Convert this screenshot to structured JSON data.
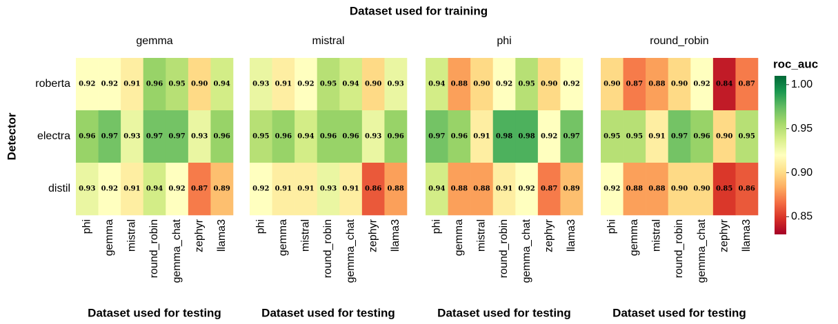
{
  "chart_data": {
    "type": "heatmap",
    "title": "Dataset used for training",
    "x_label": "Dataset used for testing",
    "y_label": "Detector",
    "x_categories": [
      "phi",
      "gemma",
      "mistral",
      "round_robin",
      "gemma_chat",
      "zephyr",
      "llama3"
    ],
    "y_categories": [
      "roberta",
      "electra",
      "distil"
    ],
    "facets": [
      {
        "name": "gemma",
        "values": [
          [
            0.92,
            0.92,
            0.91,
            0.96,
            0.95,
            0.9,
            0.94
          ],
          [
            0.96,
            0.97,
            0.93,
            0.97,
            0.97,
            0.93,
            0.96
          ],
          [
            0.93,
            0.92,
            0.91,
            0.94,
            0.92,
            0.87,
            0.89
          ]
        ],
        "value_labels": [
          [
            "0.92",
            "0.92",
            "0.91",
            "0.96",
            "0.95",
            "0.90",
            "0.94"
          ],
          [
            "0.96",
            "0.97",
            "0.93",
            "0.97",
            "0.97",
            "0.93",
            "0.96"
          ],
          [
            "0.93",
            "0.92",
            "0.91",
            "0.94",
            "0.92",
            "0.87",
            "0.89"
          ]
        ]
      },
      {
        "name": "mistral",
        "values": [
          [
            0.93,
            0.91,
            0.92,
            0.95,
            0.94,
            0.9,
            0.93
          ],
          [
            0.95,
            0.96,
            0.94,
            0.96,
            0.96,
            0.93,
            0.96
          ],
          [
            0.92,
            0.91,
            0.91,
            0.93,
            0.91,
            0.86,
            0.88
          ]
        ],
        "value_labels": [
          [
            "0.93",
            "0.91",
            "0.92",
            "0.95",
            "0.94",
            "0.90",
            "0.93"
          ],
          [
            "0.95",
            "0.96",
            "0.94",
            "0.96",
            "0.96",
            "0.93",
            "0.96"
          ],
          [
            "0.92",
            "0.91",
            "0.91",
            "0.93",
            "0.91",
            "0.86",
            "0.88"
          ]
        ]
      },
      {
        "name": "phi",
        "values": [
          [
            0.94,
            0.88,
            0.9,
            0.92,
            0.95,
            0.9,
            0.92
          ],
          [
            0.97,
            0.96,
            0.91,
            0.98,
            0.98,
            0.92,
            0.97
          ],
          [
            0.94,
            0.88,
            0.88,
            0.91,
            0.92,
            0.87,
            0.89
          ]
        ],
        "value_labels": [
          [
            "0.94",
            "0.88",
            "0.90",
            "0.92",
            "0.95",
            "0.90",
            "0.92"
          ],
          [
            "0.97",
            "0.96",
            "0.91",
            "0.98",
            "0.98",
            "0.92",
            "0.97"
          ],
          [
            "0.94",
            "0.88",
            "0.88",
            "0.91",
            "0.92",
            "0.87",
            "0.89"
          ]
        ]
      },
      {
        "name": "round_robin",
        "values": [
          [
            0.9,
            0.87,
            0.88,
            0.9,
            0.92,
            0.84,
            0.87
          ],
          [
            0.95,
            0.95,
            0.91,
            0.97,
            0.96,
            0.9,
            0.95
          ],
          [
            0.92,
            0.88,
            0.88,
            0.9,
            0.9,
            0.85,
            0.86
          ]
        ],
        "value_labels": [
          [
            "0.90",
            "0.87",
            "0.88",
            "0.90",
            "0.92",
            "0.84",
            "0.87"
          ],
          [
            "0.95",
            "0.95",
            "0.91",
            "0.97",
            "0.96",
            "0.90",
            "0.95"
          ],
          [
            "0.92",
            "0.88",
            "0.88",
            "0.90",
            "0.90",
            "0.85",
            "0.86"
          ]
        ]
      }
    ],
    "colorbar": {
      "title": "roc_auc",
      "zlim": [
        0.83,
        1.01
      ],
      "ticks": [
        0.85,
        {
          "value": 0.9,
          "label": "0.90"
        },
        0.95,
        {
          "value": 1,
          "label": "1.00"
        }
      ],
      "colorscale": [
        "#a50026",
        "#d73027",
        "#f46d43",
        "#fdae61",
        "#fee08b",
        "#ffffbf",
        "#d9ef8b",
        "#a6d96a",
        "#66bd63",
        "#1a9850",
        "#006837"
      ]
    }
  }
}
